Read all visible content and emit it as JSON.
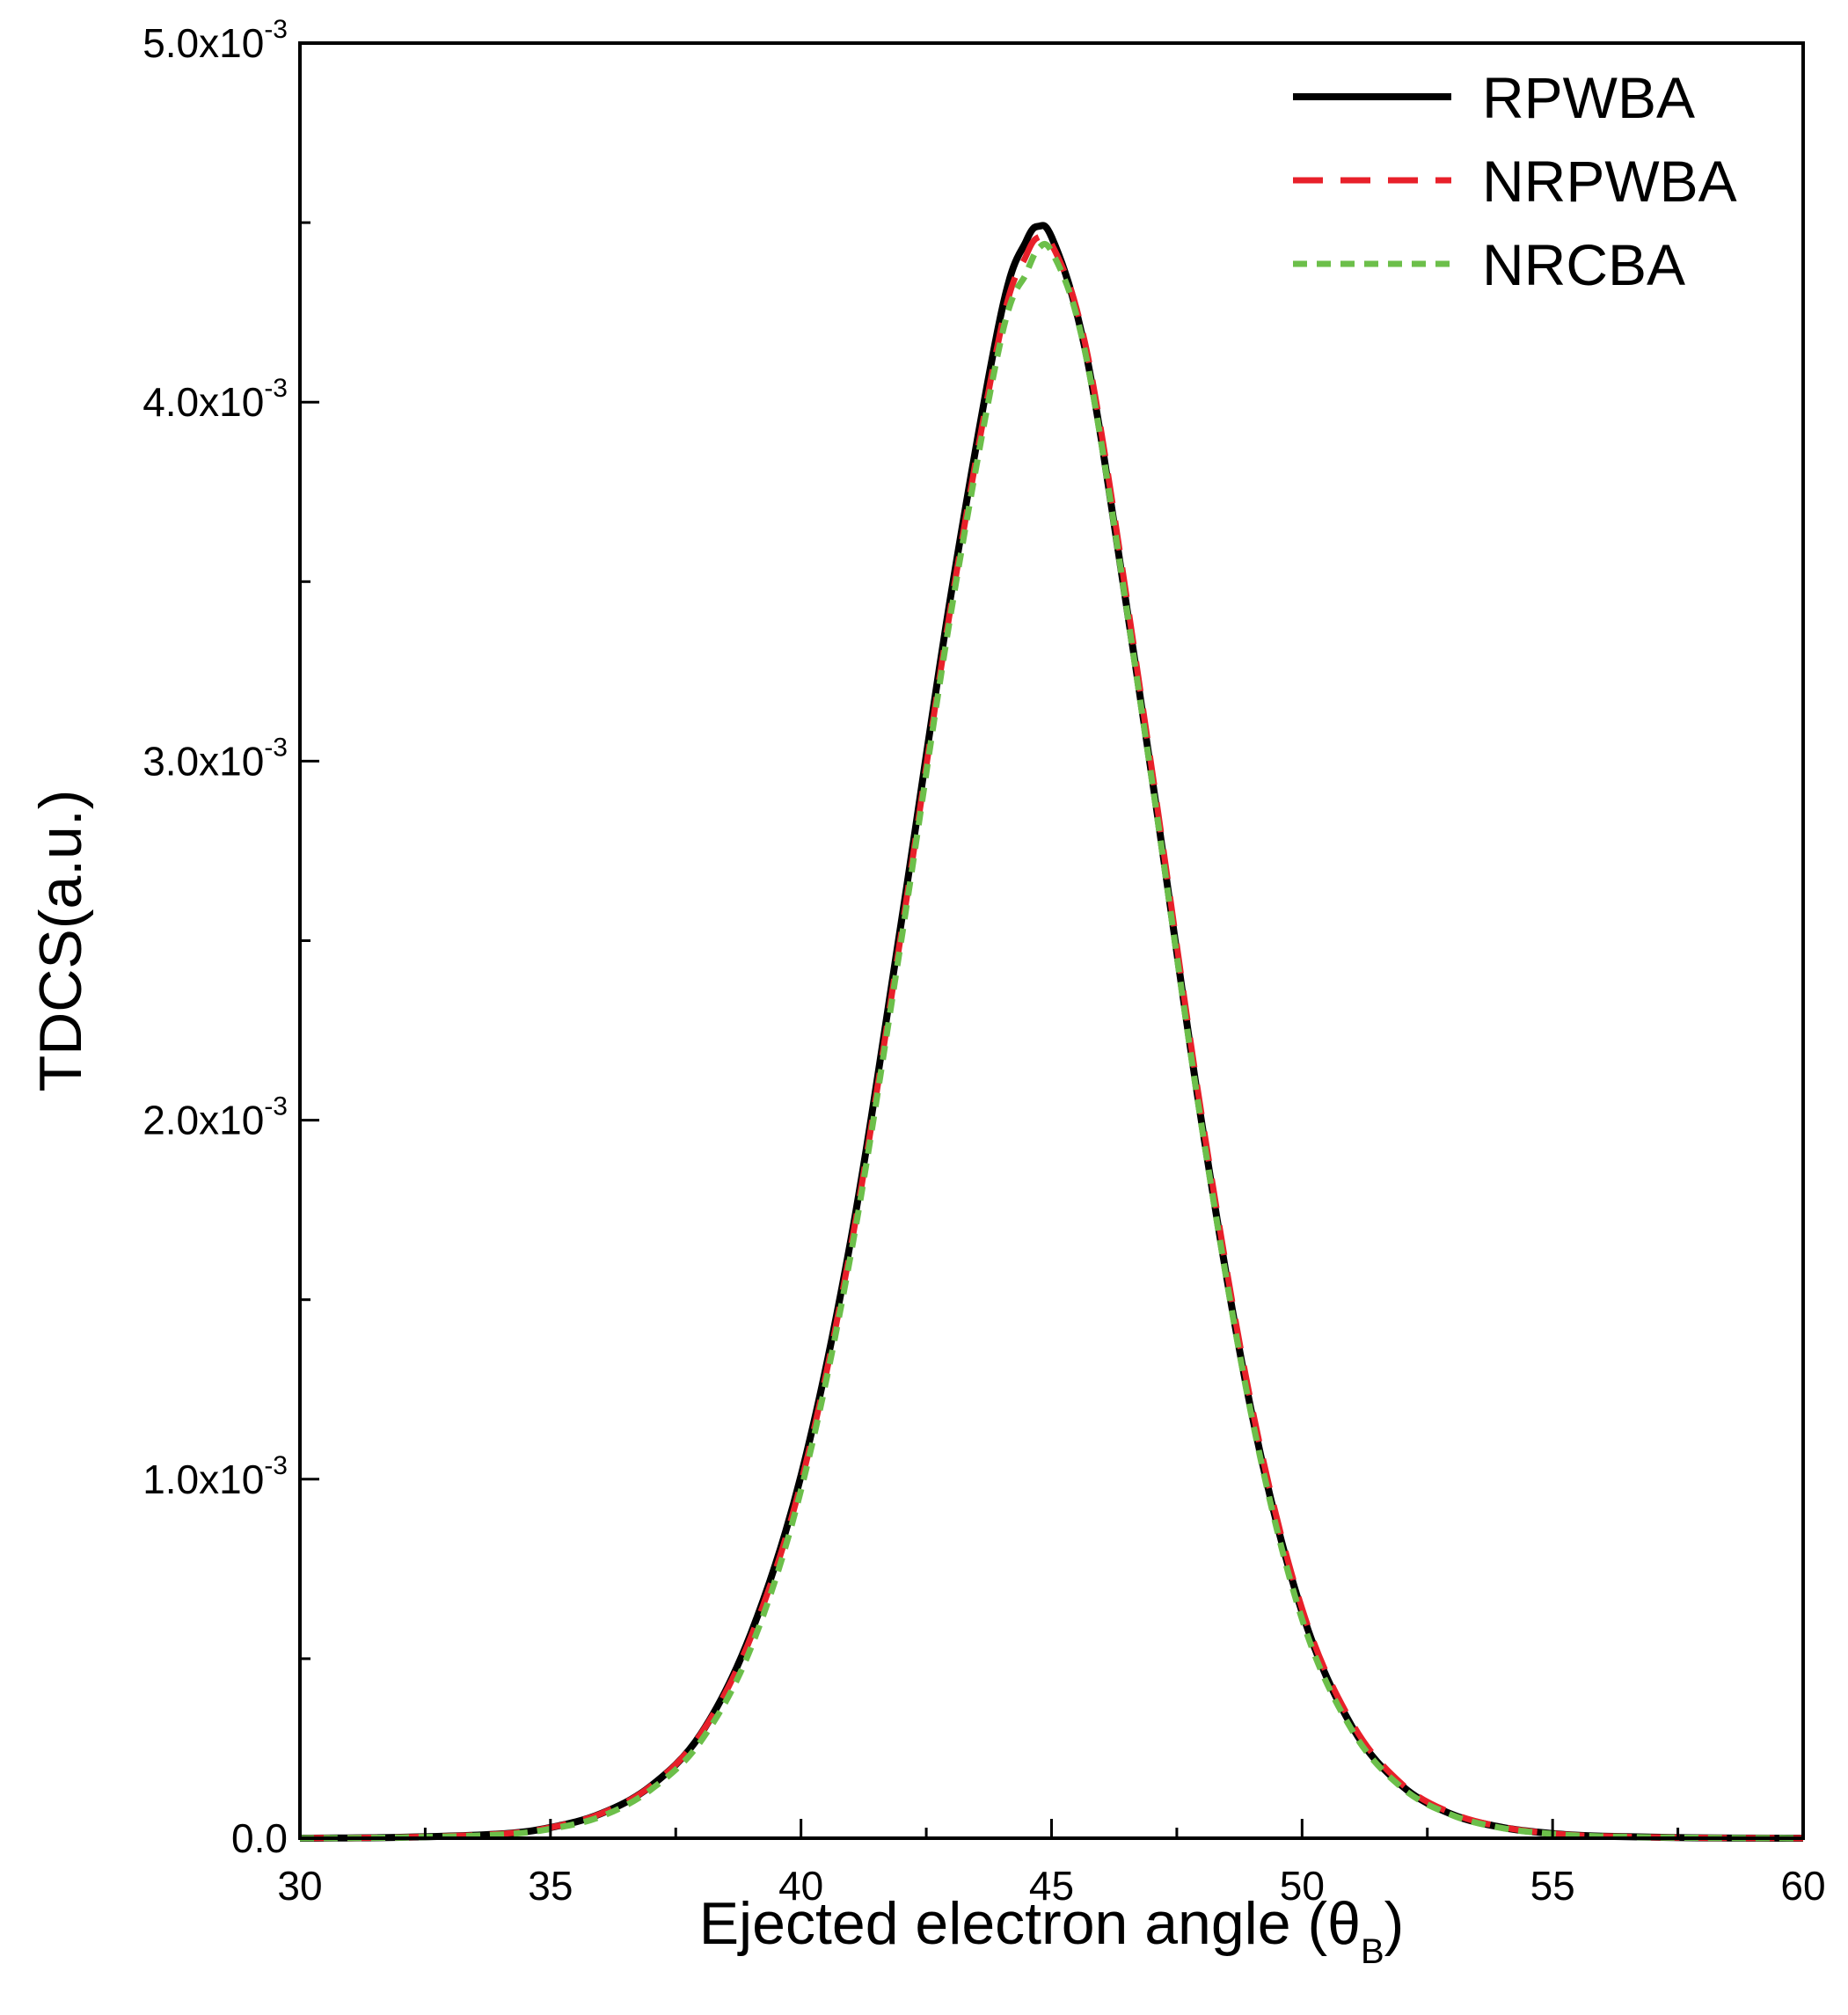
{
  "chart_data": {
    "type": "line",
    "xlabel": "Ejected electron angle (θ",
    "xlabel_sub": "B",
    "xlabel_close": ")",
    "ylabel": "TDCS(a.u.)",
    "xlim": [
      30,
      60
    ],
    "ylim": [
      0,
      0.005
    ],
    "x_ticks": [
      30,
      35,
      40,
      45,
      50,
      55,
      60
    ],
    "x_tick_labels": [
      "30",
      "35",
      "40",
      "45",
      "50",
      "55",
      "60"
    ],
    "y_ticks": [
      0,
      0.001,
      0.002,
      0.003,
      0.004,
      0.005
    ],
    "y_tick_labels": [
      {
        "mantissa": "0.0",
        "exp": ""
      },
      {
        "mantissa": "1.0x10",
        "exp": "-3"
      },
      {
        "mantissa": "2.0x10",
        "exp": "-3"
      },
      {
        "mantissa": "3.0x10",
        "exp": "-3"
      },
      {
        "mantissa": "4.0x10",
        "exp": "-3"
      },
      {
        "mantissa": "5.0x10",
        "exp": "-3"
      }
    ],
    "grid": false,
    "legend_position": "top-right",
    "x": [
      30,
      32,
      34,
      35,
      36,
      37,
      38,
      39,
      40,
      41,
      42,
      43,
      44,
      44.5,
      44.75,
      45,
      45.5,
      46,
      47,
      48,
      49,
      50,
      51,
      52,
      53,
      54,
      55,
      56,
      58,
      60
    ],
    "series": [
      {
        "name": "RPWBA",
        "color": "#000000",
        "style": "solid",
        "values": [
          0.0,
          2.5e-06,
          1.2e-05,
          3e-05,
          6.8e-05,
          0.000145,
          0.00029,
          0.00057,
          0.00101,
          0.00167,
          0.00255,
          0.00347,
          0.00425,
          0.00445,
          0.00449,
          0.00446,
          0.00425,
          0.00389,
          0.00296,
          0.00199,
          0.00118,
          0.00063,
          0.00031,
          0.000145,
          6.6e-05,
          3e-05,
          1.3e-05,
          5.5e-06,
          1e-06,
          0.0
        ]
      },
      {
        "name": "NRPWBA",
        "color": "#e8202a",
        "style": "dashed",
        "values": [
          0.0,
          2.5e-06,
          1.2e-05,
          3e-05,
          6.8e-05,
          0.000145,
          0.00029,
          0.00056,
          0.00099,
          0.00165,
          0.00252,
          0.00344,
          0.00421,
          0.00441,
          0.00446,
          0.00444,
          0.00426,
          0.00391,
          0.00298,
          0.00201,
          0.0012,
          0.00064,
          0.00032,
          0.00015,
          6.9e-05,
          3.1e-05,
          1.3e-05,
          5.5e-06,
          1e-06,
          0.0
        ]
      },
      {
        "name": "NRCBA",
        "color": "#6cbf4a",
        "style": "dotted",
        "values": [
          0.0,
          2e-06,
          1e-05,
          2.6e-05,
          6e-05,
          0.000135,
          0.00027,
          0.00053,
          0.00097,
          0.00163,
          0.0025,
          0.00342,
          0.00418,
          0.00436,
          0.00443,
          0.00442,
          0.00424,
          0.00388,
          0.00295,
          0.00198,
          0.00117,
          0.00061,
          0.0003,
          0.00014,
          6.4e-05,
          2.8e-05,
          1.2e-05,
          5e-06,
          1e-06,
          0.0
        ]
      }
    ]
  }
}
